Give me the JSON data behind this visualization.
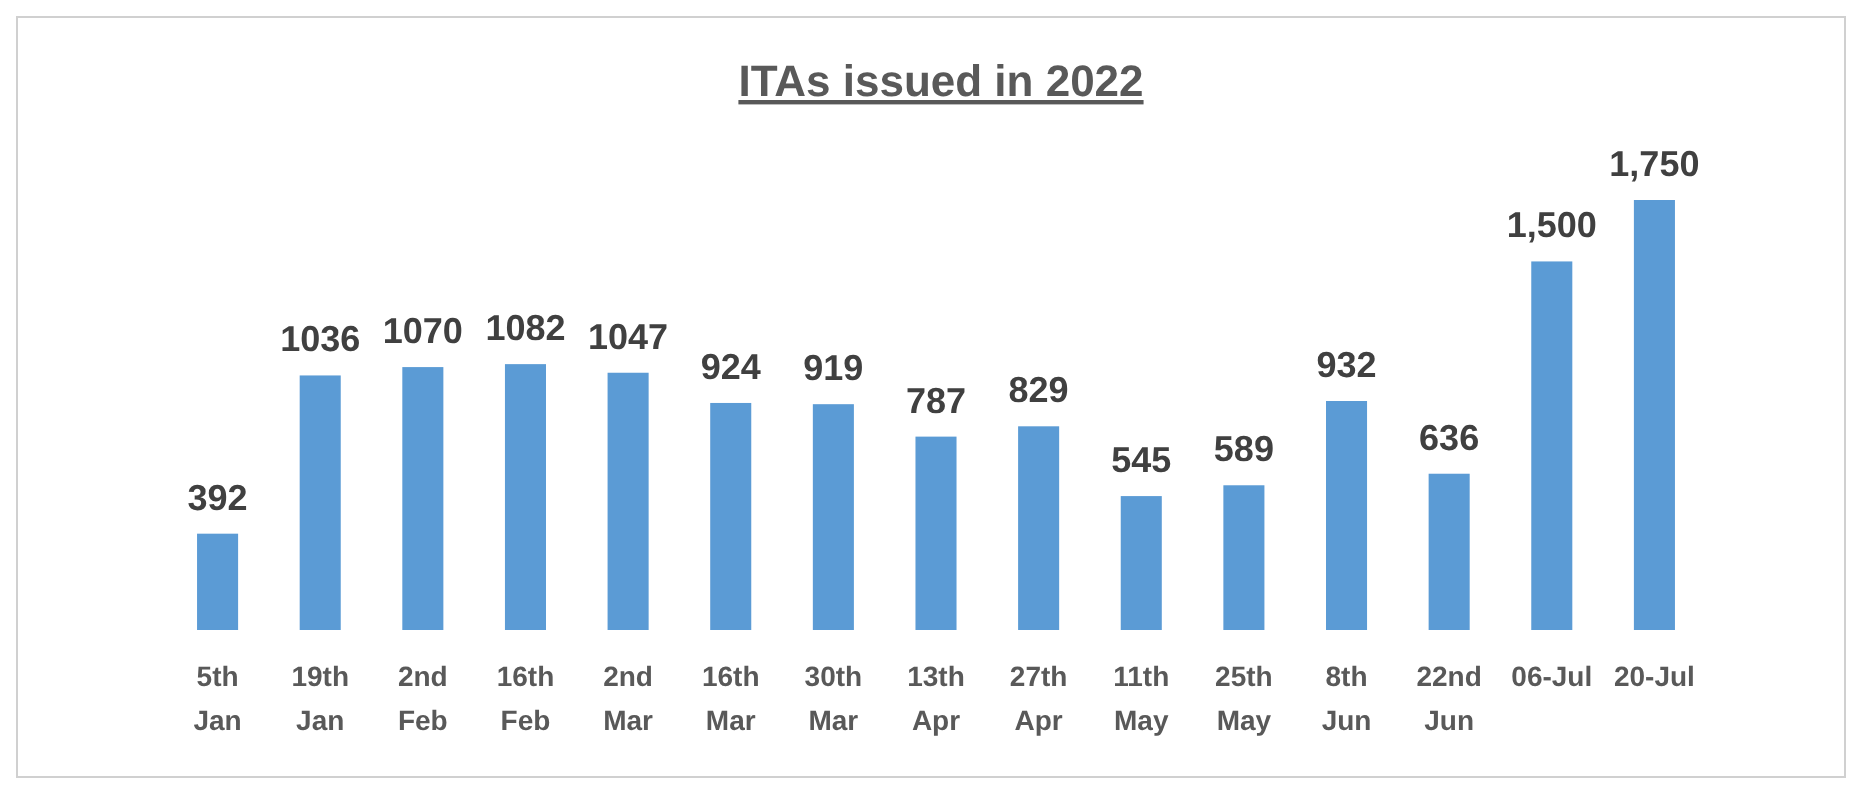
{
  "chart_data": {
    "type": "bar",
    "title": "ITAs issued in 2022",
    "categories": [
      "5th Jan",
      "19th Jan",
      "2nd Feb",
      "16th Feb",
      "2nd Mar",
      "16th Mar",
      "30th Mar",
      "13th Apr",
      "27th Apr",
      "11th May",
      "25th May",
      "8th Jun",
      "22nd Jun",
      "06-Jul",
      "20-Jul"
    ],
    "values": [
      392,
      1036,
      1070,
      1082,
      1047,
      924,
      919,
      787,
      829,
      545,
      589,
      932,
      636,
      1500,
      1750
    ],
    "value_labels": [
      "392",
      "1036",
      "1070",
      "1082",
      "1047",
      "924",
      "919",
      "787",
      "829",
      "545",
      "589",
      "932",
      "636",
      "1,500",
      "1,750"
    ],
    "color": "#5b9bd5"
  }
}
